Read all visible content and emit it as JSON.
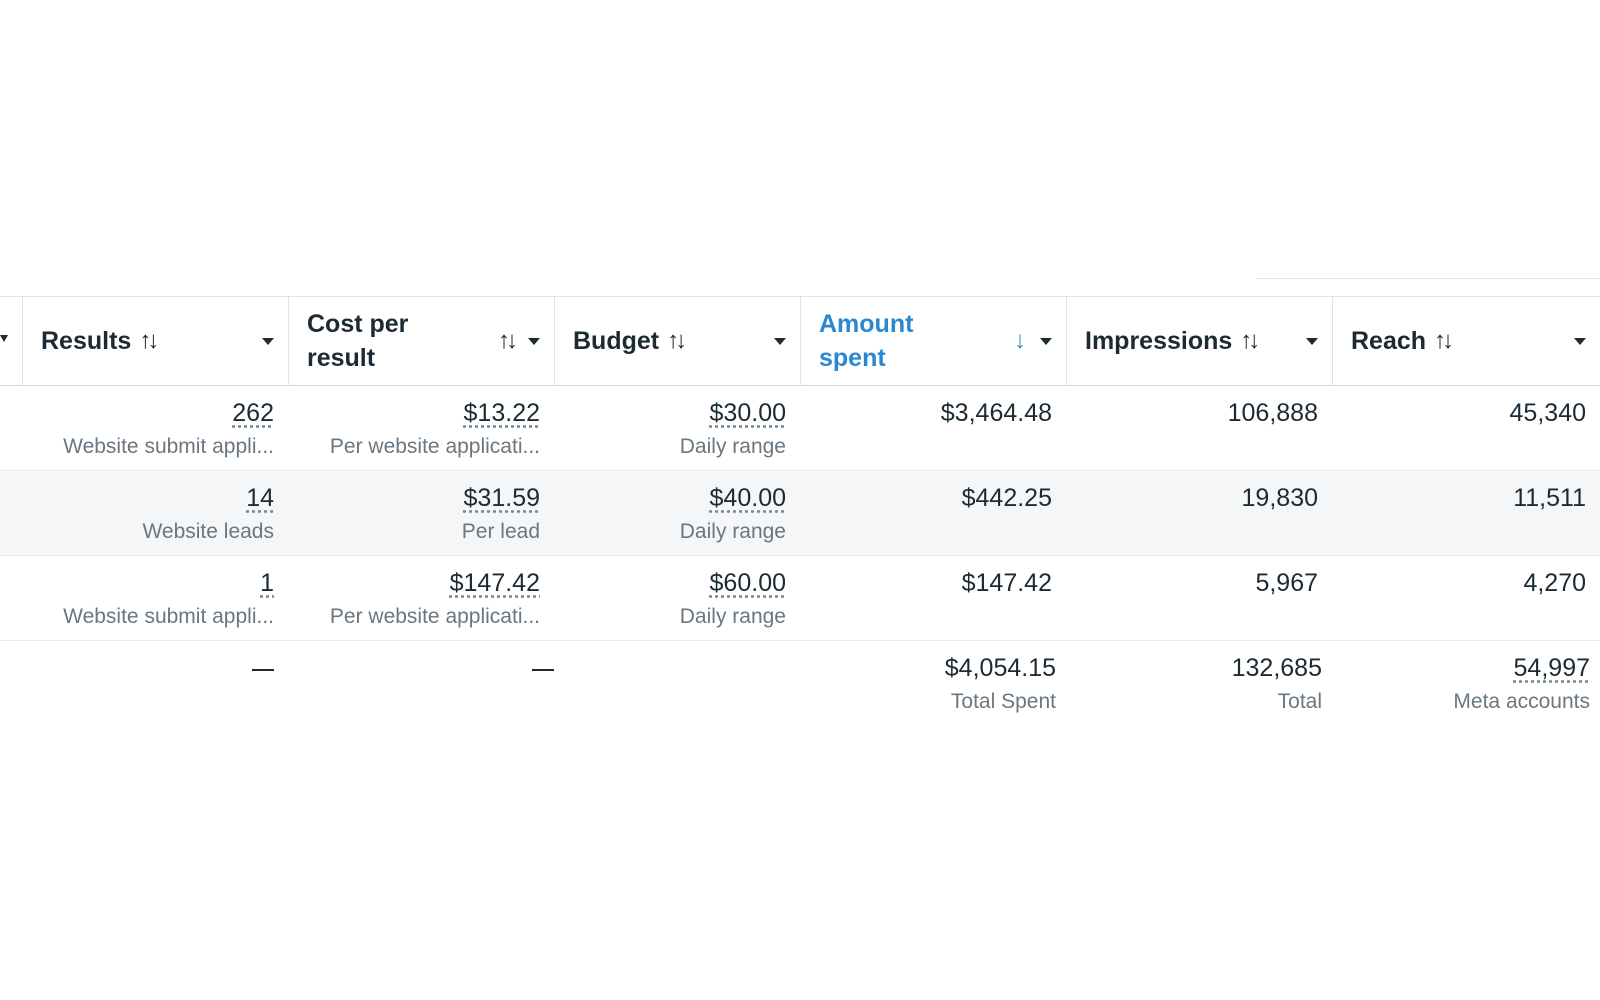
{
  "columns": {
    "results": "Results",
    "cost_per_result": "Cost per result",
    "budget": "Budget",
    "amount_spent": "Amount spent",
    "impressions": "Impressions",
    "reach": "Reach"
  },
  "icons": {
    "sort": "sort-arrows-icon",
    "sort_active": "sort-descending-icon",
    "dropdown": "caret-down-icon"
  },
  "sort_symbols": {
    "both": "↑↓",
    "desc": "↓"
  },
  "rows": [
    {
      "results": "262",
      "results_type": "Website submit appli...",
      "cost_per_result": "$13.22",
      "cost_type": "Per website applicati...",
      "budget": "$30.00",
      "budget_type": "Daily range",
      "amount_spent": "$3,464.48",
      "impressions": "106,888",
      "reach": "45,340"
    },
    {
      "results": "14",
      "results_type": "Website leads",
      "cost_per_result": "$31.59",
      "cost_type": "Per lead",
      "budget": "$40.00",
      "budget_type": "Daily range",
      "amount_spent": "$442.25",
      "impressions": "19,830",
      "reach": "11,511"
    },
    {
      "results": "1",
      "results_type": "Website submit appli...",
      "cost_per_result": "$147.42",
      "cost_type": "Per website applicati...",
      "budget": "$60.00",
      "budget_type": "Daily range",
      "amount_spent": "$147.42",
      "impressions": "5,967",
      "reach": "4,270"
    }
  ],
  "totals": {
    "results": "—",
    "cost_per_result": "—",
    "amount_spent": "$4,054.15",
    "amount_spent_label": "Total Spent",
    "impressions": "132,685",
    "impressions_label": "Total",
    "reach": "54,997",
    "reach_label": "Meta accounts"
  },
  "colors": {
    "text": "#1c2b33",
    "secondary_text": "#6a7781",
    "active_sort": "#2a88d0",
    "alt_row": "#f4f6f8"
  }
}
